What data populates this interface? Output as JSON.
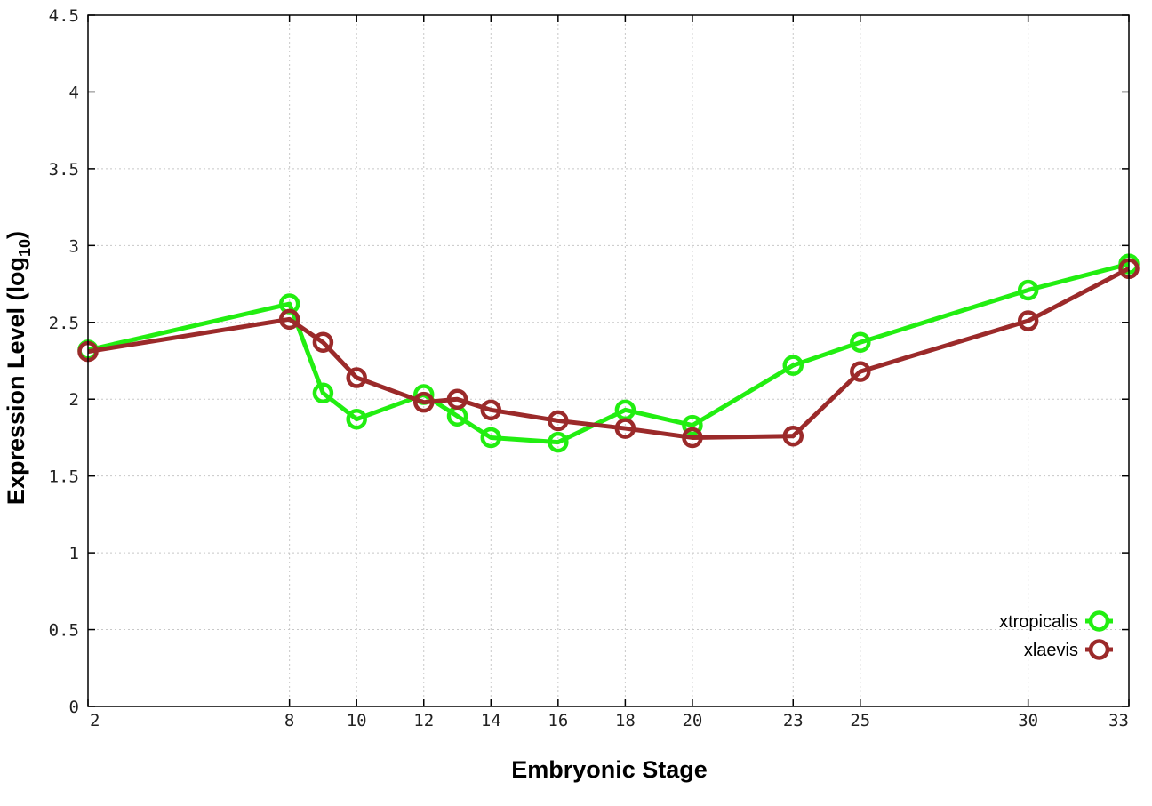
{
  "chart_data": {
    "type": "line",
    "title": "",
    "xlabel": "Embryonic Stage",
    "ylabel": "Expression Level (log",
    "ylabel_subscript": "10",
    "ylabel_suffix": ")",
    "x_ticks": [
      2,
      8,
      10,
      12,
      14,
      16,
      18,
      20,
      23,
      25,
      30,
      33
    ],
    "x_tick_labels": [
      "2",
      "8",
      "10",
      "12",
      "14",
      "16",
      "18",
      "20",
      "23",
      "25",
      "30",
      "33"
    ],
    "y_ticks": [
      0,
      0.5,
      1,
      1.5,
      2,
      2.5,
      3,
      3.5,
      4,
      4.5
    ],
    "y_tick_labels": [
      "0",
      "0.5",
      "1",
      "1.5",
      "2",
      "2.5",
      "3",
      "3.5",
      "4",
      "4.5"
    ],
    "xlim": [
      2,
      33
    ],
    "ylim": [
      0,
      4.5
    ],
    "grid": true,
    "legend_position": "bottom-right",
    "series": [
      {
        "name": "xtropicalis",
        "color": "#22ee11",
        "x": [
          2,
          8,
          9,
          10,
          12,
          13,
          14,
          16,
          18,
          20,
          23,
          25,
          30,
          33
        ],
        "y": [
          2.32,
          2.62,
          2.04,
          1.87,
          2.03,
          1.89,
          1.75,
          1.72,
          1.93,
          1.83,
          2.22,
          2.37,
          2.71,
          2.88
        ]
      },
      {
        "name": "xlaevis",
        "color": "#9b2a2a",
        "x": [
          2,
          8,
          9,
          10,
          12,
          13,
          14,
          16,
          18,
          20,
          23,
          25,
          30,
          33
        ],
        "y": [
          2.31,
          2.52,
          2.37,
          2.14,
          1.98,
          2.0,
          1.93,
          1.86,
          1.81,
          1.75,
          1.76,
          2.18,
          2.51,
          2.85
        ]
      }
    ]
  }
}
